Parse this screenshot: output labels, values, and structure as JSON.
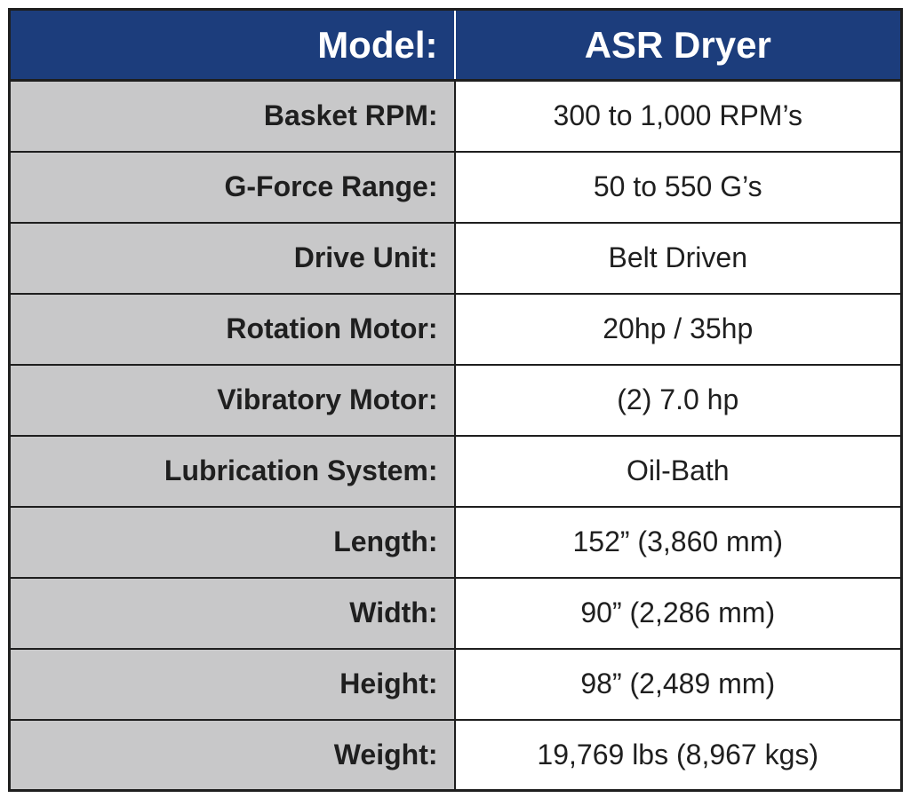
{
  "colors": {
    "header_bg": "#1c3d7c",
    "header_text": "#ffffff",
    "label_bg": "#c8c8c9",
    "value_bg": "#ffffff",
    "border": "#1e1e1e"
  },
  "table": {
    "header": {
      "label": "Model:",
      "value": "ASR Dryer"
    },
    "rows": [
      {
        "label": "Basket RPM:",
        "value": "300 to 1,000 RPM’s"
      },
      {
        "label": "G-Force Range:",
        "value": "50 to 550 G’s"
      },
      {
        "label": "Drive Unit:",
        "value": "Belt Driven"
      },
      {
        "label": "Rotation Motor:",
        "value": "20hp / 35hp"
      },
      {
        "label": "Vibratory Motor:",
        "value": "(2) 7.0 hp"
      },
      {
        "label": "Lubrication System:",
        "value": "Oil-Bath"
      },
      {
        "label": "Length:",
        "value": "152” (3,860 mm)"
      },
      {
        "label": "Width:",
        "value": "90” (2,286 mm)"
      },
      {
        "label": "Height:",
        "value": "98” (2,489 mm)"
      },
      {
        "label": "Weight:",
        "value": "19,769 lbs (8,967 kgs)"
      }
    ]
  }
}
